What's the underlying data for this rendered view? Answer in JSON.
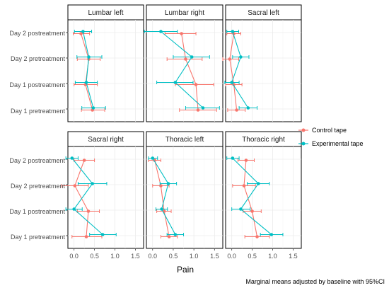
{
  "chart_data": {
    "type": "scatter",
    "xlabel": "Pain",
    "caption": "Marginal means adjusted by baseline with 95%CI",
    "xlim": [
      -0.15,
      1.7
    ],
    "x_ticks": [
      "0.0",
      "0.5",
      "1.0",
      "1.5"
    ],
    "x_tick_values": [
      0.0,
      0.5,
      1.0,
      1.5
    ],
    "categories": [
      "Day 1 pretreatment",
      "Day 1 postreatment",
      "Day 2 pretreatment",
      "Day 2 postreatment"
    ],
    "grid": true,
    "legend_position": "right",
    "legend": [
      "Control tape",
      "Experimental tape"
    ],
    "colors": {
      "Control tape": "#F8766D",
      "Experimental tape": "#00BFC4"
    },
    "panels": [
      {
        "name": "Lumbar left",
        "series": [
          {
            "name": "Control tape",
            "mean": [
              0.45,
              0.28,
              0.36,
              0.17
            ],
            "lo": [
              0.18,
              0.0,
              0.08,
              -0.02
            ],
            "hi": [
              0.75,
              0.57,
              0.64,
              0.38
            ]
          },
          {
            "name": "Experimental tape",
            "mean": [
              0.47,
              0.3,
              0.36,
              0.22
            ],
            "lo": [
              0.19,
              0.03,
              0.07,
              0.01
            ],
            "hi": [
              0.77,
              0.57,
              0.68,
              0.43
            ]
          }
        ]
      },
      {
        "name": "Lumbar right",
        "series": [
          {
            "name": "Control tape",
            "mean": [
              1.1,
              1.05,
              0.8,
              0.7
            ],
            "lo": [
              0.65,
              0.55,
              0.35,
              0.3
            ],
            "hi": [
              1.55,
              1.48,
              1.2,
              1.05
            ]
          },
          {
            "name": "Experimental tape",
            "mean": [
              1.22,
              0.55,
              0.95,
              0.2
            ],
            "lo": [
              0.8,
              0.1,
              0.5,
              -0.2
            ],
            "hi": [
              1.62,
              0.98,
              1.38,
              0.6
            ]
          }
        ]
      },
      {
        "name": "Sacral left",
        "series": [
          {
            "name": "Control tape",
            "mean": [
              0.12,
              0.05,
              -0.05,
              0.05
            ],
            "lo": [
              -0.1,
              -0.15,
              -0.22,
              -0.12
            ],
            "hi": [
              0.33,
              0.25,
              0.17,
              0.22
            ]
          },
          {
            "name": "Experimental tape",
            "mean": [
              0.4,
              0.0,
              0.22,
              0.02
            ],
            "lo": [
              0.18,
              -0.17,
              0.02,
              -0.12
            ],
            "hi": [
              0.62,
              0.18,
              0.42,
              0.17
            ]
          }
        ]
      },
      {
        "name": "Sacral right",
        "series": [
          {
            "name": "Control tape",
            "mean": [
              0.3,
              0.35,
              0.02,
              0.25
            ],
            "lo": [
              -0.05,
              0.08,
              -0.3,
              0.0
            ],
            "hi": [
              0.68,
              0.62,
              0.35,
              0.5
            ]
          },
          {
            "name": "Experimental tape",
            "mean": [
              0.7,
              0.0,
              0.45,
              -0.05
            ],
            "lo": [
              0.38,
              -0.2,
              0.1,
              -0.2
            ],
            "hi": [
              1.03,
              0.2,
              0.8,
              0.1
            ]
          }
        ]
      },
      {
        "name": "Thoracic left",
        "series": [
          {
            "name": "Control tape",
            "mean": [
              0.4,
              0.28,
              0.2,
              0.05
            ],
            "lo": [
              0.2,
              0.1,
              0.0,
              -0.1
            ],
            "hi": [
              0.6,
              0.45,
              0.4,
              0.2
            ]
          },
          {
            "name": "Experimental tape",
            "mean": [
              0.55,
              0.22,
              0.38,
              0.0
            ],
            "lo": [
              0.35,
              0.08,
              0.18,
              -0.1
            ],
            "hi": [
              0.75,
              0.36,
              0.58,
              0.12
            ]
          }
        ]
      },
      {
        "name": "Thoracic right",
        "series": [
          {
            "name": "Control tape",
            "mean": [
              0.62,
              0.5,
              0.3,
              0.35
            ],
            "lo": [
              0.32,
              0.28,
              0.02,
              0.15
            ],
            "hi": [
              0.92,
              0.72,
              0.58,
              0.55
            ]
          },
          {
            "name": "Experimental tape",
            "mean": [
              0.97,
              0.22,
              0.65,
              0.02
            ],
            "lo": [
              0.7,
              0.0,
              0.38,
              -0.12
            ],
            "hi": [
              1.25,
              0.45,
              0.92,
              0.18
            ]
          }
        ]
      }
    ]
  }
}
